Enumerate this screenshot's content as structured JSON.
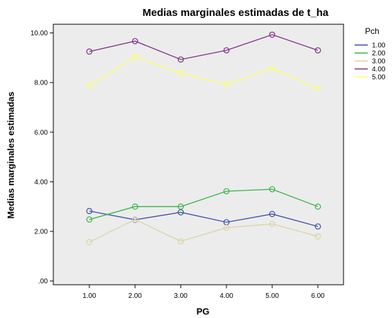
{
  "chart_data": {
    "type": "line",
    "title": "Medias marginales estimadas de t_ha",
    "xlabel": "PG",
    "ylabel": "Medias marginales estimadas",
    "x": [
      "1.00",
      "2.00",
      "3.00",
      "4.00",
      "5.00",
      "6.00"
    ],
    "y_ticks": [
      ".00",
      "2.00",
      "4.00",
      "6.00",
      "8.00",
      "10.00"
    ],
    "ylim": [
      -0.15,
      10.35
    ],
    "grid": false,
    "legend_title": "Pch",
    "legend_position": "right",
    "plot_background": "#ececec",
    "marker": "open-circle",
    "series": [
      {
        "name": "1.00",
        "color": "#3a4fa8",
        "values": [
          2.82,
          2.47,
          2.77,
          2.37,
          2.7,
          2.2
        ]
      },
      {
        "name": "2.00",
        "color": "#35b342",
        "values": [
          2.48,
          3.0,
          3.0,
          3.62,
          3.7,
          3.0
        ]
      },
      {
        "name": "3.00",
        "color": "#d9d3a6",
        "values": [
          1.57,
          2.48,
          1.6,
          2.15,
          2.3,
          1.8
        ]
      },
      {
        "name": "4.00",
        "color": "#7d2f86",
        "values": [
          9.25,
          9.67,
          8.93,
          9.3,
          9.93,
          9.3
        ]
      },
      {
        "name": "5.00",
        "color": "#ffff66",
        "values": [
          7.88,
          9.03,
          8.38,
          7.93,
          8.58,
          7.75
        ]
      }
    ]
  }
}
